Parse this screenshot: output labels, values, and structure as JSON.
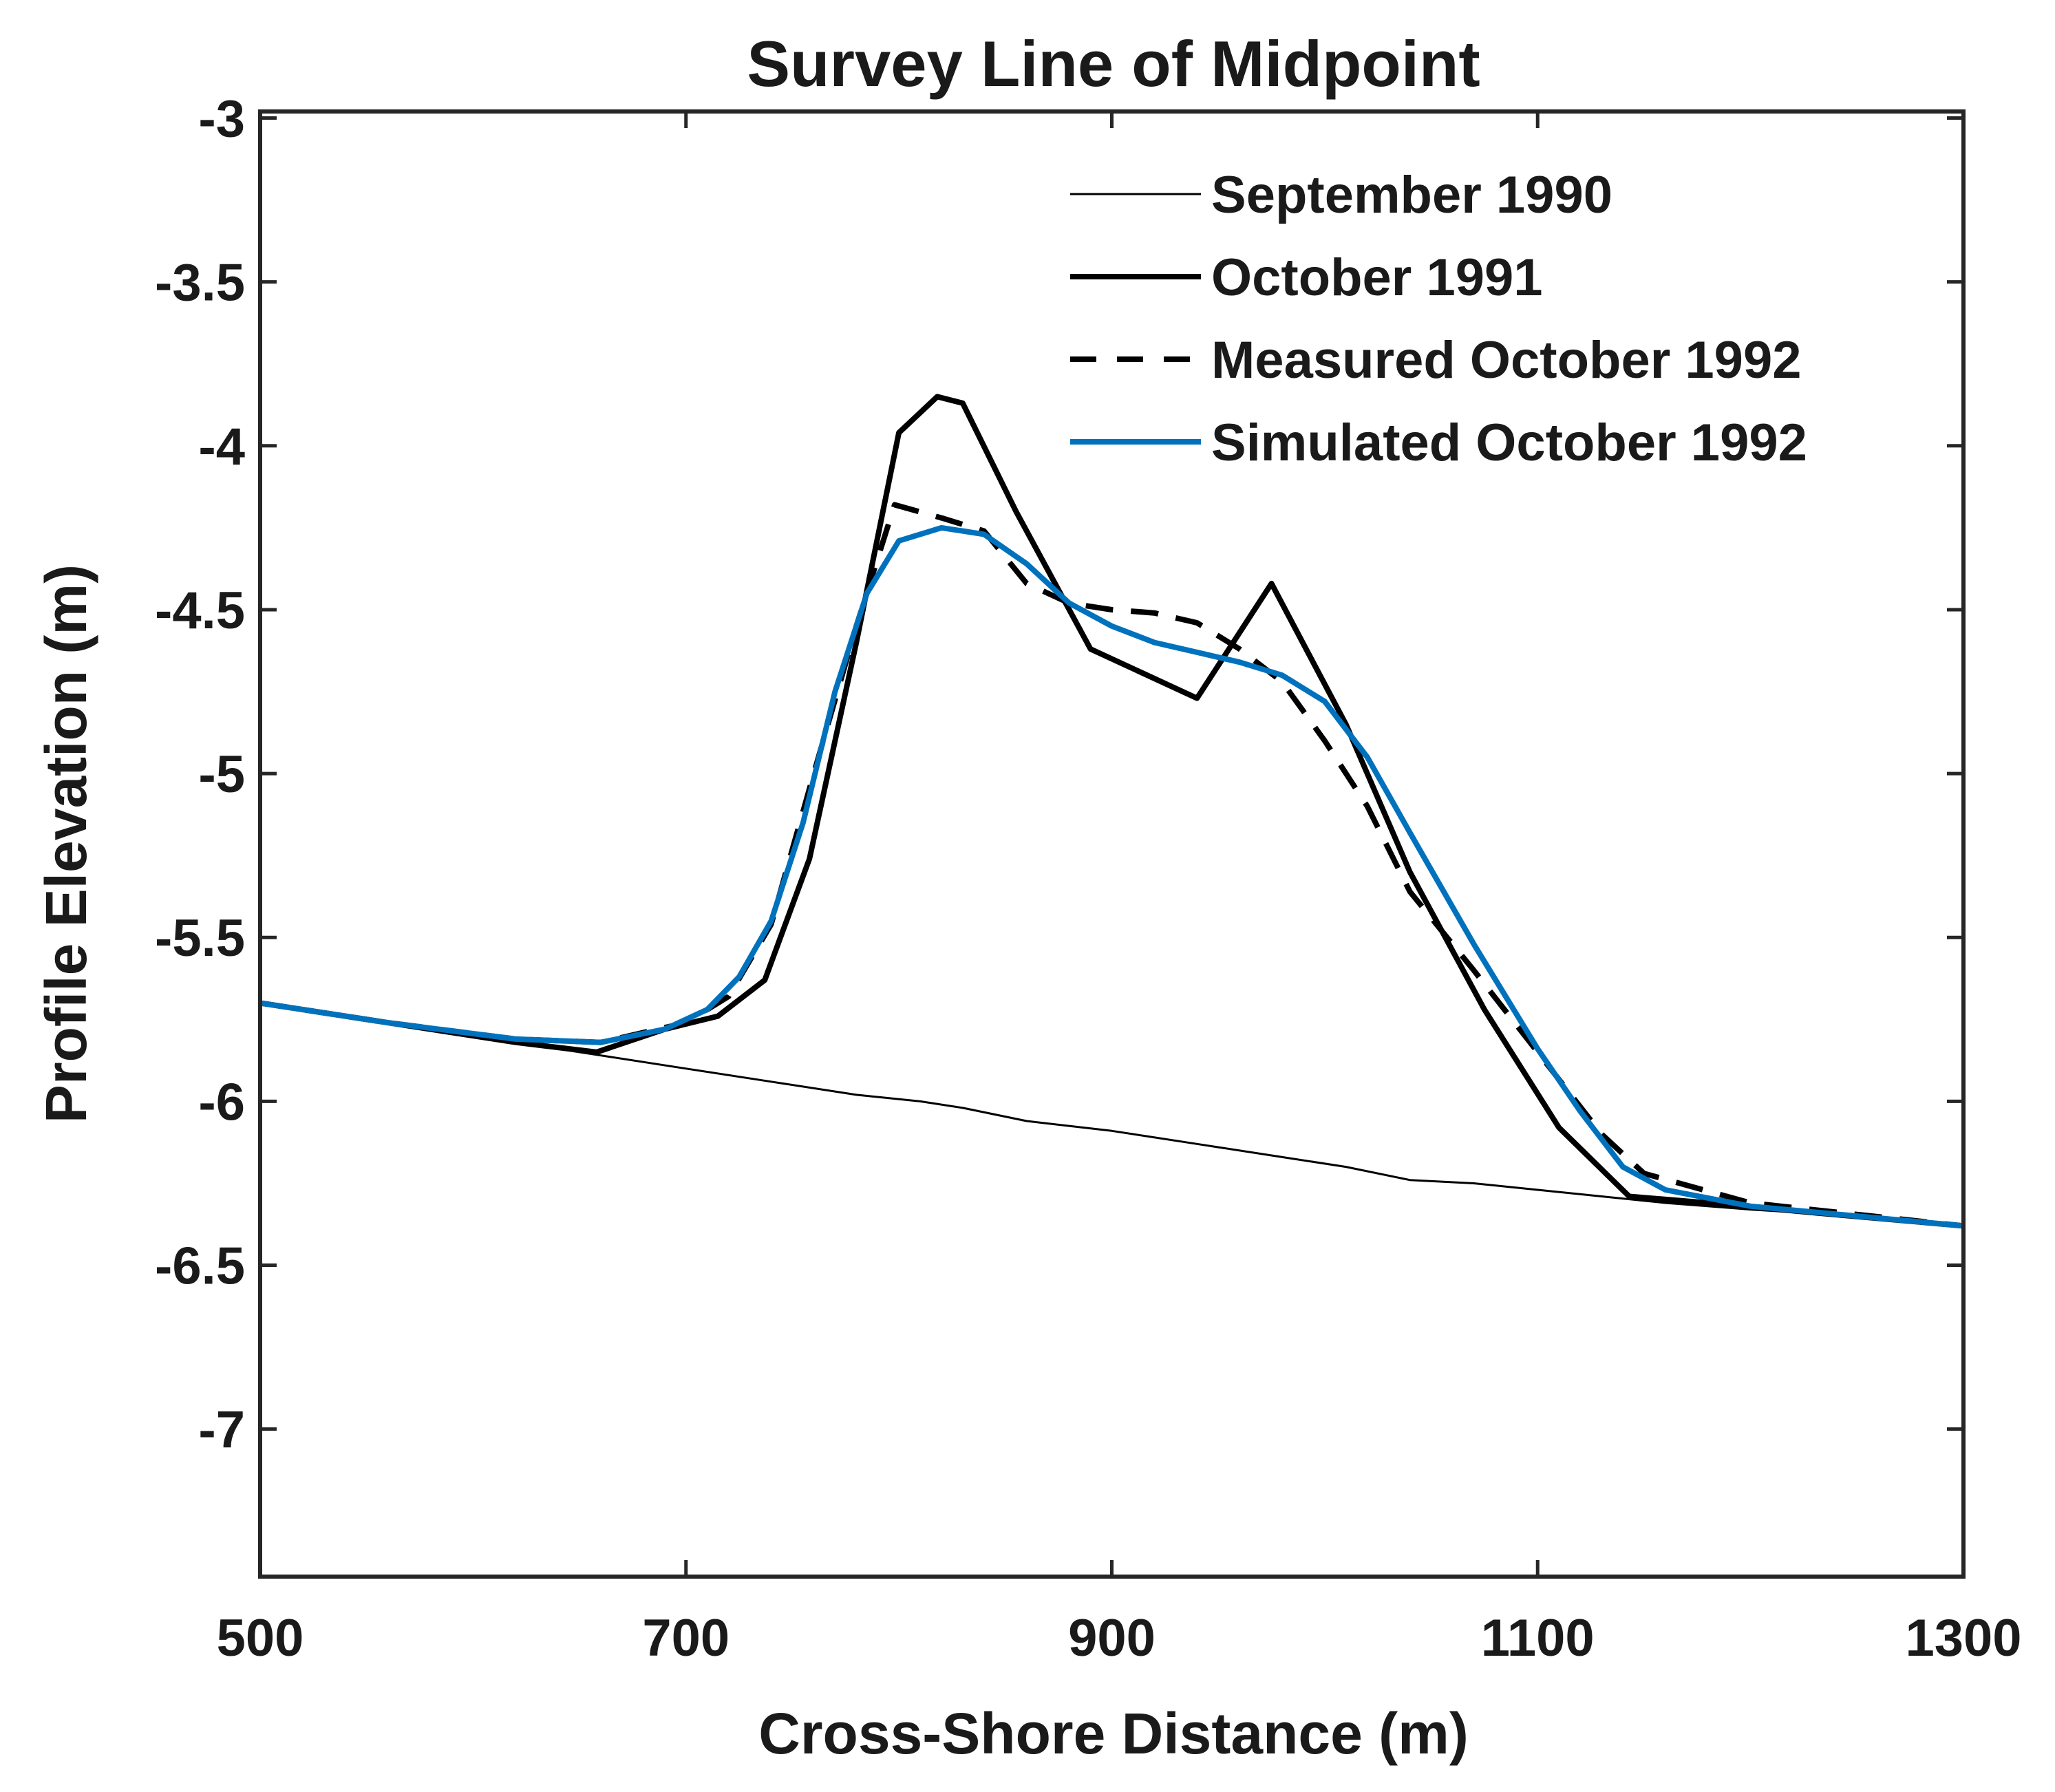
{
  "chart_data": {
    "type": "line",
    "title": "Survey Line of Midpoint",
    "xlabel": "Cross-Shore Distance (m)",
    "ylabel": "Profile Elevation (m)",
    "xlim": [
      500,
      1300
    ],
    "ylim": [
      -7.45,
      -2.98
    ],
    "xticks": [
      500,
      700,
      900,
      1100,
      1300
    ],
    "xtick_labels": [
      "500",
      "700",
      "900",
      "1100",
      "1300"
    ],
    "yticks": [
      -3,
      -3.5,
      -4,
      -4.5,
      -5,
      -5.5,
      -6,
      -6.5,
      -7
    ],
    "ytick_labels": [
      "-3",
      "-3.5",
      "-4",
      "-4.5",
      "-5",
      "-5.5",
      "-6",
      "-6.5",
      "-7"
    ],
    "grid": false,
    "legend_position": "top-right",
    "series": [
      {
        "name": "September 1990",
        "color": "#000000",
        "style": "thin-solid",
        "x": [
          500,
          540,
          580,
          620,
          660,
          700,
          740,
          780,
          810,
          830,
          860,
          900,
          940,
          980,
          1010,
          1040,
          1070,
          1100,
          1130,
          1160,
          1200,
          1250,
          1300
        ],
        "y": [
          -5.7,
          -5.74,
          -5.78,
          -5.82,
          -5.86,
          -5.9,
          -5.94,
          -5.98,
          -6.0,
          -6.02,
          -6.06,
          -6.09,
          -6.13,
          -6.17,
          -6.2,
          -6.24,
          -6.25,
          -6.27,
          -6.29,
          -6.31,
          -6.33,
          -6.35,
          -6.38
        ]
      },
      {
        "name": "October 1991",
        "color": "#000000",
        "style": "thick-solid",
        "x": [
          500,
          560,
          620,
          658,
          690,
          715,
          737,
          758,
          780,
          800,
          818,
          830,
          855,
          890,
          940,
          975,
          1010,
          1040,
          1075,
          1110,
          1143,
          1180,
          1230,
          1300
        ],
        "y": [
          -5.7,
          -5.76,
          -5.82,
          -5.85,
          -5.78,
          -5.74,
          -5.63,
          -5.26,
          -4.6,
          -3.96,
          -3.85,
          -3.87,
          -4.2,
          -4.62,
          -4.77,
          -4.42,
          -4.85,
          -5.3,
          -5.72,
          -6.08,
          -6.29,
          -6.31,
          -6.34,
          -6.38
        ]
      },
      {
        "name": "Measured October 1992",
        "color": "#000000",
        "style": "dashed",
        "x": [
          500,
          560,
          620,
          660,
          700,
          720,
          740,
          760,
          780,
          798,
          820,
          840,
          860,
          880,
          900,
          920,
          940,
          960,
          980,
          1000,
          1020,
          1040,
          1070,
          1100,
          1130,
          1150,
          1200,
          1300
        ],
        "y": [
          -5.7,
          -5.76,
          -5.81,
          -5.82,
          -5.76,
          -5.68,
          -5.46,
          -5.0,
          -4.55,
          -4.18,
          -4.22,
          -4.26,
          -4.42,
          -4.48,
          -4.5,
          -4.51,
          -4.54,
          -4.62,
          -4.72,
          -4.9,
          -5.1,
          -5.36,
          -5.6,
          -5.85,
          -6.1,
          -6.22,
          -6.31,
          -6.38
        ]
      },
      {
        "name": "Simulated October 1992",
        "color": "#0072BD",
        "style": "thick-solid",
        "x": [
          500,
          560,
          620,
          660,
          690,
          710,
          725,
          740,
          755,
          770,
          785,
          800,
          820,
          840,
          860,
          880,
          900,
          920,
          940,
          960,
          980,
          1000,
          1020,
          1040,
          1070,
          1100,
          1120,
          1140,
          1160,
          1200,
          1250,
          1300
        ],
        "y": [
          -5.7,
          -5.76,
          -5.81,
          -5.82,
          -5.78,
          -5.72,
          -5.62,
          -5.45,
          -5.15,
          -4.75,
          -4.45,
          -4.29,
          -4.25,
          -4.27,
          -4.36,
          -4.48,
          -4.55,
          -4.6,
          -4.63,
          -4.66,
          -4.7,
          -4.78,
          -4.95,
          -5.18,
          -5.52,
          -5.84,
          -6.03,
          -6.2,
          -6.27,
          -6.32,
          -6.35,
          -6.38
        ]
      }
    ]
  }
}
